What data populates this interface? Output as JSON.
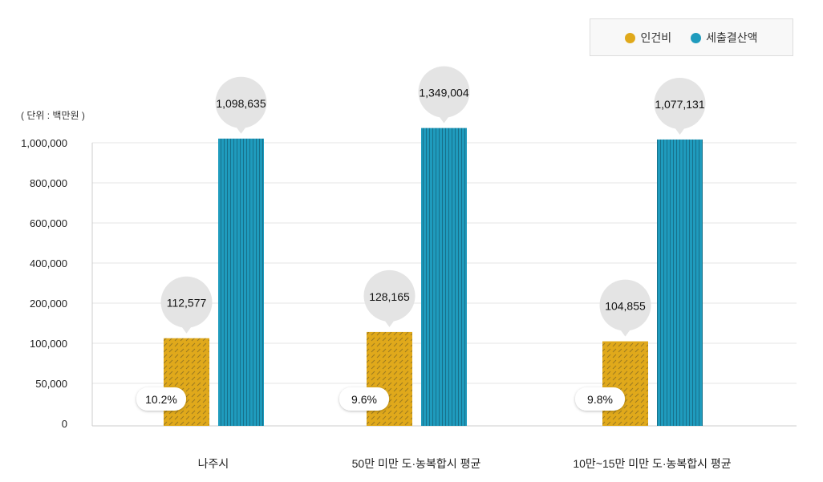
{
  "chart_data": {
    "type": "bar",
    "unit_label": "( 단위 : 백만원 )",
    "categories": [
      "나주시",
      "50만 미만 도·농복합시 평균",
      "10만~15만 미만 도·농복합시 평균"
    ],
    "series": [
      {
        "name": "인건비",
        "color": "#e0a91b",
        "values": [
          112577,
          128165,
          104855
        ],
        "value_labels": [
          "112,577",
          "128,165",
          "104,855"
        ],
        "ratio_labels": [
          "10.2%",
          "9.6%",
          "9.8%"
        ]
      },
      {
        "name": "세출결산액",
        "color": "#1f9bbd",
        "values": [
          1098635,
          1349004,
          1077131
        ],
        "value_labels": [
          "1,098,635",
          "1,349,004",
          "1,077,131"
        ]
      }
    ],
    "y_ticks": [
      0,
      50000,
      100000,
      200000,
      400000,
      600000,
      800000,
      1000000
    ],
    "y_tick_labels": [
      "0",
      "50,000",
      "100,000",
      "200,000",
      "400,000",
      "600,000",
      "800,000",
      "1,000,000"
    ],
    "ylim": [
      0,
      1000000
    ],
    "grid": true,
    "legend_position": "top-right"
  }
}
